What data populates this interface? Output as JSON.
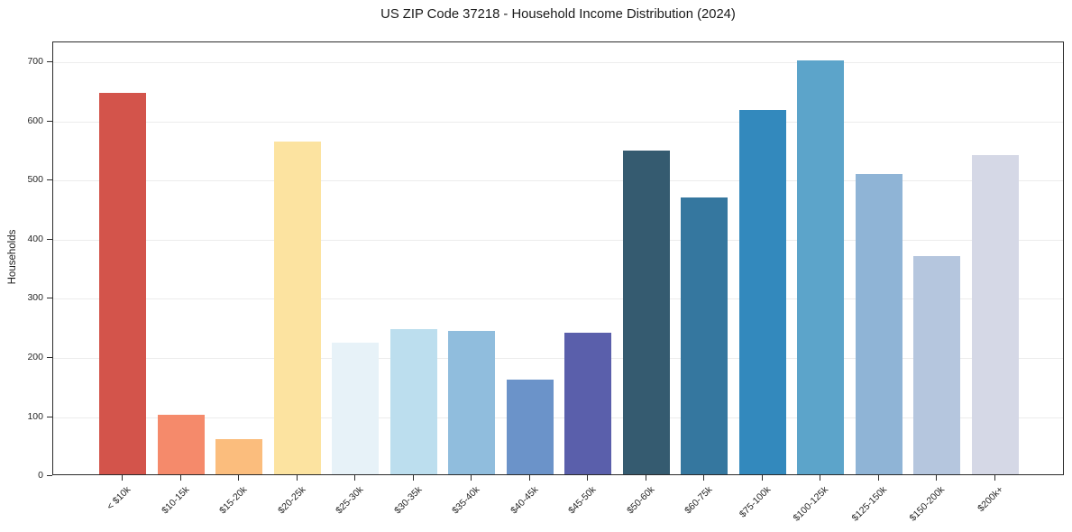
{
  "chart_data": {
    "type": "bar",
    "title": "US ZIP Code 37218 - Household Income Distribution (2024)",
    "xlabel": "",
    "ylabel": "Households",
    "categories": [
      "< $10k",
      "$10-15k",
      "$15-20k",
      "$20-25k",
      "$25-30k",
      "$30-35k",
      "$35-40k",
      "$40-45k",
      "$45-50k",
      "$50-60k",
      "$60-75k",
      "$75-100k",
      "$100-125k",
      "$125-150k",
      "$150-200k",
      "$200k+"
    ],
    "values": [
      645,
      101,
      60,
      563,
      223,
      245,
      242,
      161,
      239,
      548,
      468,
      616,
      700,
      508,
      370,
      541
    ],
    "bar_colors": [
      "#d3544b",
      "#f58a6b",
      "#fbbd7d",
      "#fce3a0",
      "#e7f2f8",
      "#bcdeee",
      "#90bddd",
      "#6b93c9",
      "#5a5fab",
      "#355b70",
      "#35779f",
      "#3389bd",
      "#5ca4ca",
      "#8fb4d6",
      "#b5c6de",
      "#d5d8e6"
    ],
    "yticks": [
      0,
      100,
      200,
      300,
      400,
      500,
      600,
      700
    ],
    "ylim": [
      0,
      734
    ],
    "xtick_rotation": 45,
    "grid": "horizontal",
    "legend": "none",
    "background": "#ffffff",
    "grid_color": "#ececec",
    "axis_color": "#2b2b2b",
    "text_color": "#262626"
  }
}
